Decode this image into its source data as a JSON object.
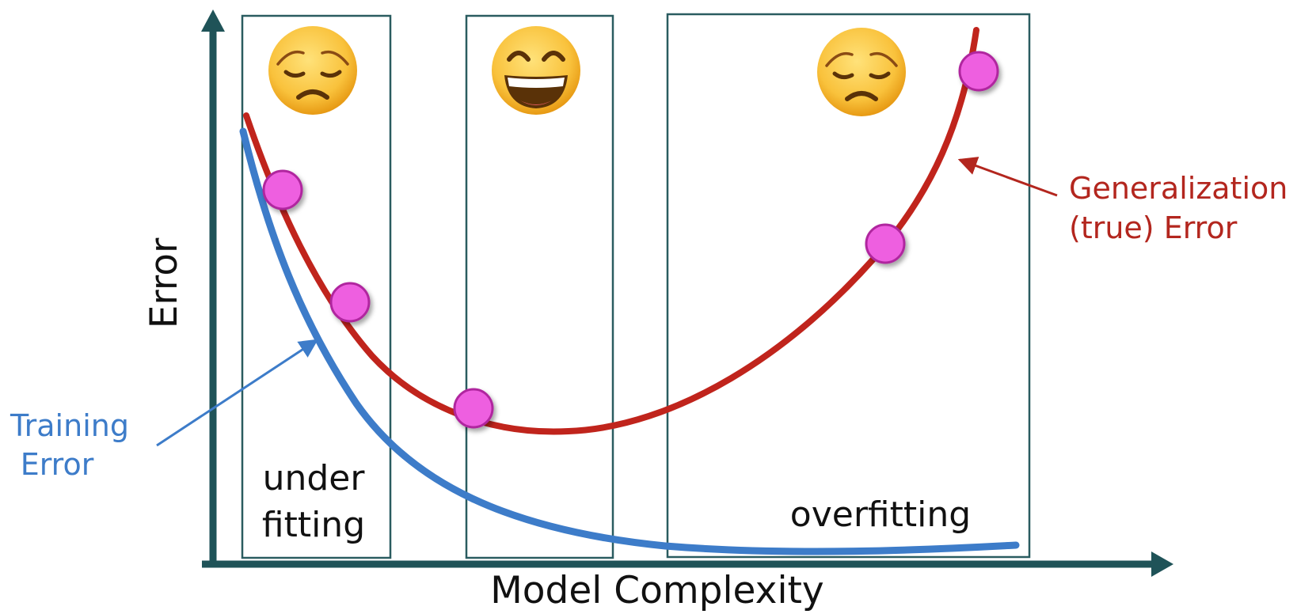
{
  "axes": {
    "x_label": "Model Complexity",
    "y_label": "Error"
  },
  "regions": [
    {
      "label_lines": [
        "under",
        "fitting"
      ],
      "emoji": "disappointed-face"
    },
    {
      "label_lines": [],
      "emoji": "grinning-face-smiling-eyes"
    },
    {
      "label_lines": [
        "overfitting"
      ],
      "emoji": "disappointed-face"
    }
  ],
  "annotations": {
    "training": {
      "lines": [
        "Training",
        "Error"
      ]
    },
    "generalization": {
      "lines": [
        "Generalization",
        "(true) Error"
      ]
    }
  },
  "colors": {
    "axis": "#1f5358",
    "region_border": "#2a5c60",
    "training_curve": "#3d7cc9",
    "generalization_curve": "#c0241c",
    "training_text": "#3d7cc9",
    "generalization_text": "#b3261e",
    "sample_point_fill": "#ee5fe0",
    "sample_point_stroke": "#b0279f",
    "emoji_face": "#f9c23c",
    "emoji_face_edge": "#e79a14"
  }
}
